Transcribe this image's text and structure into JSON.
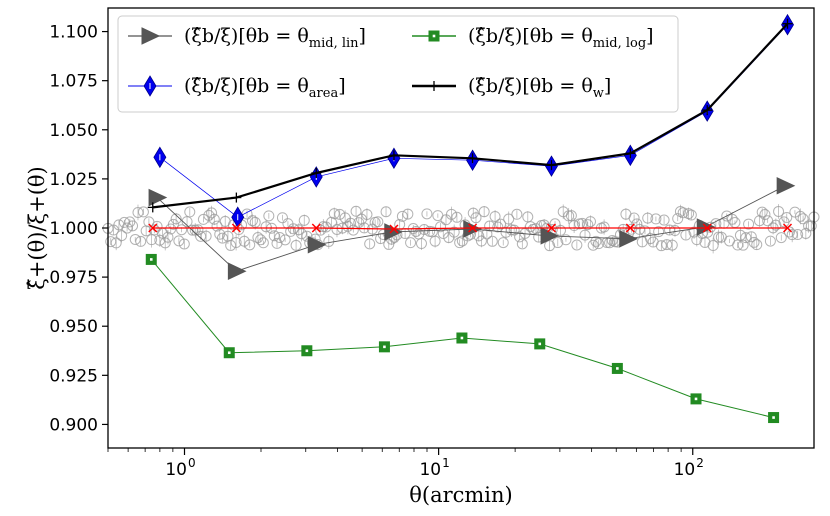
{
  "chart_data": {
    "type": "line",
    "xscale": "log",
    "xlim": [
      0.5,
      300
    ],
    "ylim": [
      0.888,
      1.112
    ],
    "xlabel": "θ(arcmin)",
    "ylabel": "ξ̂+(θ)/ξ+(θ)",
    "x_ticks": [
      {
        "value": 1,
        "base": "10",
        "exp": "0"
      },
      {
        "value": 10,
        "base": "10",
        "exp": "1"
      },
      {
        "value": 100,
        "base": "10",
        "exp": "2"
      }
    ],
    "y_ticks": [
      0.9,
      0.925,
      0.95,
      0.975,
      1.0,
      1.025,
      1.05,
      1.075,
      1.1
    ],
    "y_tick_labels": [
      "0.900",
      "0.925",
      "0.950",
      "0.975",
      "1.000",
      "1.025",
      "1.050",
      "1.075",
      "1.100"
    ],
    "series": [
      {
        "name": "mid_lin",
        "label_lhs": "(ξ̂b/ξ)[θb = θ",
        "label_sub": "mid, lin",
        "color": "#555555",
        "marker": "triangle-right",
        "x": [
          0.78,
          1.6,
          3.3,
          6.6,
          13.5,
          27.2,
          55.5,
          112,
          231
        ],
        "y": [
          1.0155,
          0.978,
          0.9915,
          0.998,
          0.9995,
          0.996,
          0.9945,
          1.0005,
          1.0215
        ]
      },
      {
        "name": "mid_log",
        "label_lhs": "(ξ̂b/ξ)[θb = θ",
        "label_sub": "mid, log",
        "color": "#228B22",
        "marker": "square",
        "x": [
          0.74,
          1.5,
          3.03,
          6.12,
          12.35,
          25.0,
          50.5,
          103,
          208
        ],
        "y": [
          0.984,
          0.9365,
          0.9375,
          0.9395,
          0.944,
          0.941,
          0.9285,
          0.913,
          0.9035
        ]
      },
      {
        "name": "area",
        "label_lhs": "(ξ̂b/ξ)[θb = θ",
        "label_sub": "area",
        "color": "#0000ee",
        "marker": "diamond",
        "x": [
          0.8,
          1.62,
          3.3,
          6.67,
          13.6,
          27.8,
          56.8,
          114,
          236
        ],
        "y": [
          1.036,
          1.0055,
          1.026,
          1.0355,
          1.0345,
          1.0315,
          1.037,
          1.0595,
          1.1035
        ]
      },
      {
        "name": "weighted",
        "label_lhs": "(ξ̂b/ξ)[θb = θ",
        "label_sub": "w",
        "color": "#000000",
        "marker": "plus",
        "x": [
          0.75,
          1.6,
          3.3,
          6.67,
          13.6,
          27.8,
          56.8,
          114,
          236
        ],
        "y": [
          1.0105,
          1.0155,
          1.028,
          1.037,
          1.0355,
          1.032,
          1.038,
          1.06,
          1.104
        ]
      },
      {
        "name": "reference",
        "color": "#ff0000",
        "marker": "x",
        "x": [
          0.75,
          1.6,
          3.3,
          6.67,
          13.6,
          27.8,
          56.8,
          114,
          236
        ],
        "y": [
          1.0,
          1.0,
          1.0,
          0.9995,
          1.0,
          1.0,
          1.0,
          1.0,
          1.0
        ]
      }
    ],
    "scatter_band": {
      "color": "#999999",
      "marker": "open-circle",
      "x_range": [
        0.5,
        300
      ],
      "center": 1.0,
      "spread": 0.009
    }
  }
}
